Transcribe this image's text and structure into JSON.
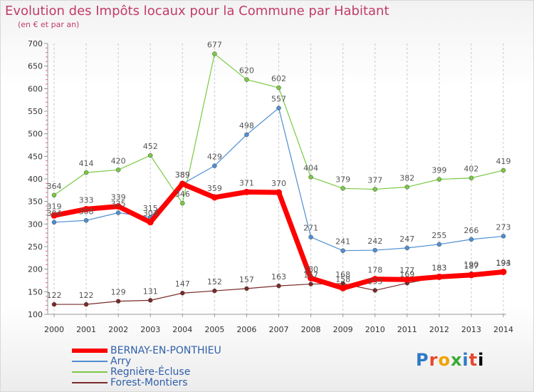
{
  "header": {
    "title": "Evolution des Impôts locaux pour la Commune par Habitant",
    "subtitle": "(en € et par an)"
  },
  "logo_text": "Proxiti",
  "chart_data": {
    "type": "line",
    "title": "Evolution des Impôts locaux pour la Commune par Habitant",
    "subtitle": "(en € et par an)",
    "xlabel": "",
    "ylabel": "",
    "x": [
      "2000",
      "2001",
      "2002",
      "2003",
      "2004",
      "2005",
      "2006",
      "2007",
      "2008",
      "2009",
      "2010",
      "2011",
      "2012",
      "2013",
      "2014"
    ],
    "ylim": [
      100,
      700
    ],
    "yticks": [
      "100",
      "150",
      "200",
      "250",
      "300",
      "350",
      "400",
      "450",
      "500",
      "550",
      "600",
      "650",
      "700"
    ],
    "grid": "vertical dashed",
    "legend_position": "bottom-left",
    "series": [
      {
        "name": "BERNAY-EN-PONTHIEU",
        "color": "#ff0000",
        "values": [
          319,
          333,
          339,
          304,
          389,
          359,
          371,
          370,
          180,
          158,
          178,
          177,
          183,
          187,
          194
        ],
        "labels": [
          "319",
          "333",
          "339",
          "304",
          "389",
          "359",
          "371",
          "370",
          "180",
          "158",
          "178",
          "177",
          "183",
          "187",
          "194"
        ]
      },
      {
        "name": "Arry",
        "color": "#4f8fd3",
        "values": [
          304,
          308,
          325,
          315,
          389,
          429,
          498,
          557,
          271,
          241,
          242,
          247,
          255,
          266,
          273
        ],
        "labels": [
          "304",
          "308",
          "325",
          "315",
          "389",
          "429",
          "498",
          "557",
          "271",
          "241",
          "242",
          "247",
          "255",
          "266",
          "273"
        ]
      },
      {
        "name": "Regnière-Écluse",
        "color": "#7ac943",
        "values": [
          364,
          414,
          420,
          452,
          346,
          677,
          620,
          602,
          404,
          379,
          377,
          382,
          399,
          402,
          419
        ],
        "labels": [
          "364",
          "414",
          "420",
          "452",
          "346",
          "677",
          "620",
          "602",
          "404",
          "379",
          "377",
          "382",
          "399",
          "402",
          "419"
        ]
      },
      {
        "name": "Forest-Montiers",
        "color": "#7a2a2a",
        "values": [
          122,
          122,
          129,
          131,
          147,
          152,
          157,
          163,
          167,
          168,
          153,
          169,
          183,
          190,
          193
        ],
        "labels": [
          "122",
          "122",
          "129",
          "131",
          "147",
          "152",
          "157",
          "163",
          "167",
          "168",
          "153",
          "169",
          "183",
          "190",
          "193"
        ]
      }
    ]
  }
}
